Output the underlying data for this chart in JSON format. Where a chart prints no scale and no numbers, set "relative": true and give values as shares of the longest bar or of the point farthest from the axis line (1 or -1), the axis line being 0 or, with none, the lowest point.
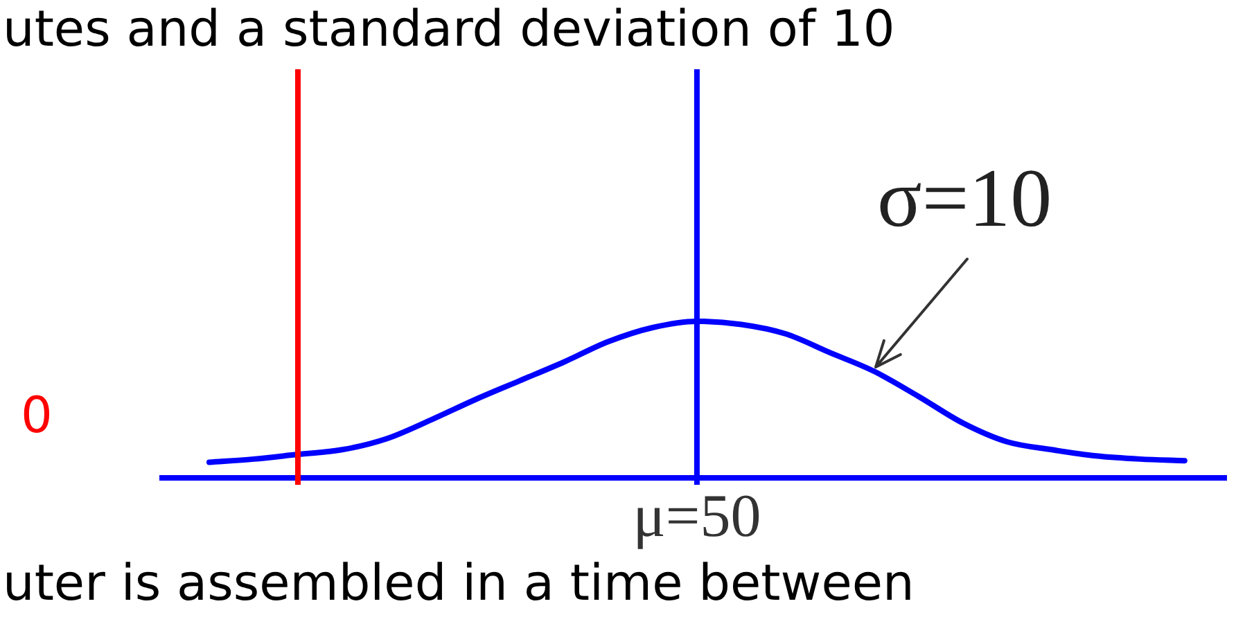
{
  "chart_data": {
    "type": "line",
    "categories": [
      null,
      null,
      null,
      null,
      null,
      null,
      null,
      null,
      null,
      null,
      null,
      null,
      null,
      null,
      null,
      null,
      null,
      null,
      null,
      null,
      null,
      null,
      null
    ],
    "series": [
      {
        "color": "#0000ff",
        "values": [
          0.1,
          0.12,
          0.15,
          0.18,
          0.25,
          0.37,
          0.5,
          0.62,
          0.74,
          0.87,
          0.96,
          1,
          0.98,
          0.92,
          0.8,
          0.68,
          0.52,
          0.35,
          0.23,
          0.18,
          0.14,
          0.12,
          0.11
        ]
      }
    ],
    "relative": true,
    "annotations": [
      "utes and a standard deviation of 10",
      "σ=10",
      "0",
      "μ=50",
      "uter is assembled in a time between"
    ]
  }
}
